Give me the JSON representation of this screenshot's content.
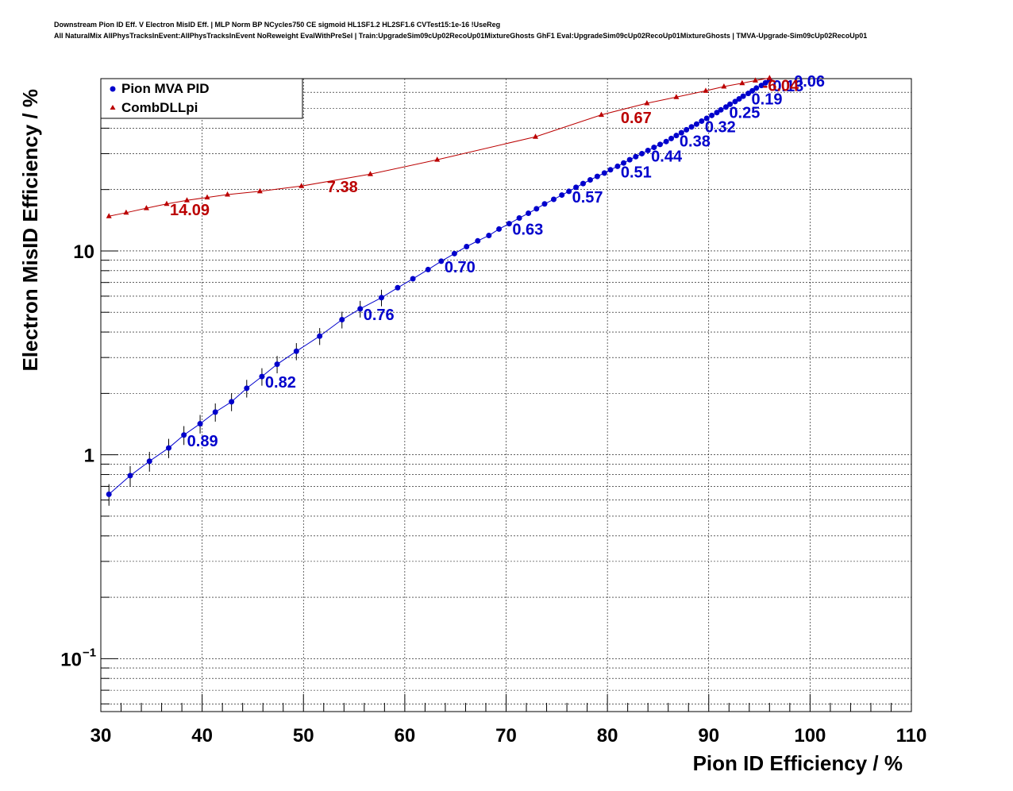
{
  "header": {
    "title_line1": "Downstream Pion ID Eff. V Electron MisID Eff. | MLP Norm BP NCycles750 CE sigmoid HL1SF1.2 HL2SF1.6 CVTest15:1e-16 !UseReg",
    "title_line2": "All NaturalMix AllPhysTracksInEvent:AllPhysTracksInEvent NoReweight EvalWithPreSel | Train:UpgradeSim09cUp02RecoUp01MixtureGhosts GhF1 Eval:UpgradeSim09cUp02RecoUp01MixtureGhosts | TMVA-Upgrade-Sim09cUp02RecoUp01"
  },
  "chart_data": {
    "type": "scatter",
    "xlabel": "Pion ID Efficiency / %",
    "ylabel": "Electron MisID Efficiency / %",
    "xlim": [
      30,
      110
    ],
    "ylim": [
      0.055,
      70
    ],
    "yscale": "log",
    "grid": true,
    "legend_position": "top-left",
    "x_ticks": [
      "30",
      "40",
      "50",
      "60",
      "70",
      "80",
      "90",
      "100",
      "110"
    ],
    "y_ticks": [
      {
        "value": 0.1,
        "base": "10",
        "exp": "−1"
      },
      {
        "value": 1,
        "base": "1",
        "exp": ""
      },
      {
        "value": 10,
        "base": "10",
        "exp": ""
      }
    ],
    "series": [
      {
        "name": "Pion MVA PID",
        "color": "#0000cc",
        "marker": "circle",
        "x": [
          30.8,
          32.9,
          34.8,
          36.7,
          38.2,
          39.8,
          41.3,
          42.9,
          44.4,
          45.9,
          47.4,
          49.3,
          51.6,
          53.8,
          55.6,
          57.7,
          59.3,
          60.8,
          62.3,
          63.6,
          64.9,
          66.1,
          67.2,
          68.3,
          69.3,
          70.3,
          71.3,
          72.2,
          73.0,
          73.8,
          74.7,
          75.5,
          76.2,
          76.9,
          77.6,
          78.3,
          79.0,
          79.7,
          80.3,
          81.0,
          81.6,
          82.2,
          82.8,
          83.4,
          84.0,
          84.6,
          85.2,
          85.8,
          86.3,
          86.8,
          87.3,
          87.8,
          88.3,
          88.8,
          89.3,
          89.8,
          90.3,
          90.8,
          91.2,
          91.7,
          92.1,
          92.6,
          93.0,
          93.4,
          93.9,
          94.3,
          94.7,
          95.2,
          95.6,
          96.0,
          96.5,
          97.0,
          97.5,
          98.1
        ],
        "y": [
          0.64,
          0.79,
          0.93,
          1.08,
          1.25,
          1.42,
          1.62,
          1.82,
          2.12,
          2.42,
          2.78,
          3.22,
          3.82,
          4.6,
          5.2,
          5.9,
          6.6,
          7.3,
          8.1,
          8.9,
          9.7,
          10.5,
          11.2,
          11.9,
          12.8,
          13.6,
          14.5,
          15.3,
          16.1,
          17.0,
          17.9,
          18.8,
          19.6,
          20.5,
          21.4,
          22.3,
          23.2,
          24.1,
          25.0,
          26.0,
          27.0,
          28.0,
          29.0,
          30.0,
          31.1,
          32.2,
          33.3,
          34.4,
          35.6,
          36.8,
          38.0,
          39.3,
          40.6,
          41.9,
          43.3,
          44.7,
          46.2,
          47.7,
          49.2,
          50.8,
          52.4,
          54.0,
          55.7,
          57.4,
          59.2,
          61.0,
          62.9,
          64.8,
          66.8,
          68.8,
          71.0,
          73.0,
          75.5,
          79.0
        ],
        "labels": [
          {
            "text": "0.89",
            "x": 38.2,
            "y": 1.25
          },
          {
            "text": "0.82",
            "x": 45.9,
            "y": 2.42
          },
          {
            "text": "0.76",
            "x": 55.6,
            "y": 5.2
          },
          {
            "text": "0.70",
            "x": 63.6,
            "y": 8.9
          },
          {
            "text": "0.63",
            "x": 70.3,
            "y": 13.6
          },
          {
            "text": "0.57",
            "x": 76.2,
            "y": 19.6
          },
          {
            "text": "0.51",
            "x": 81.0,
            "y": 26.0
          },
          {
            "text": "0.44",
            "x": 84.0,
            "y": 31.1
          },
          {
            "text": "0.38",
            "x": 86.8,
            "y": 36.8
          },
          {
            "text": "0.32",
            "x": 89.3,
            "y": 43.3
          },
          {
            "text": "0.25",
            "x": 91.7,
            "y": 50.8
          },
          {
            "text": "0.19",
            "x": 93.9,
            "y": 59.2
          },
          {
            "text": "0.13",
            "x": 96.0,
            "y": 68.8
          },
          {
            "text": "0.06",
            "x": 98.1,
            "y": 79.0
          }
        ]
      },
      {
        "name": "CombDLLpi",
        "color": "#bb0000",
        "marker": "triangle",
        "x": [
          30.8,
          32.5,
          34.5,
          36.5,
          38.5,
          40.5,
          42.5,
          45.7,
          49.8,
          56.6,
          63.2,
          72.9,
          79.4,
          83.9,
          86.8,
          89.7,
          91.5,
          93.3,
          94.6,
          96.0
        ],
        "y": [
          14.8,
          15.4,
          16.2,
          17.0,
          17.7,
          18.3,
          18.9,
          19.6,
          20.8,
          23.8,
          28.0,
          36.3,
          46.5,
          53.0,
          56.8,
          61.0,
          64.0,
          66.5,
          68.5,
          70.5
        ],
        "labels": [
          {
            "text": "14.09",
            "x": 36.5,
            "y": 17.0
          },
          {
            "text": "7.38",
            "x": 52.0,
            "y": 22.0
          },
          {
            "text": "0.67",
            "x": 81.0,
            "y": 48.0
          },
          {
            "text": "-6.04",
            "x": 95.0,
            "y": 69.0
          }
        ]
      }
    ]
  }
}
